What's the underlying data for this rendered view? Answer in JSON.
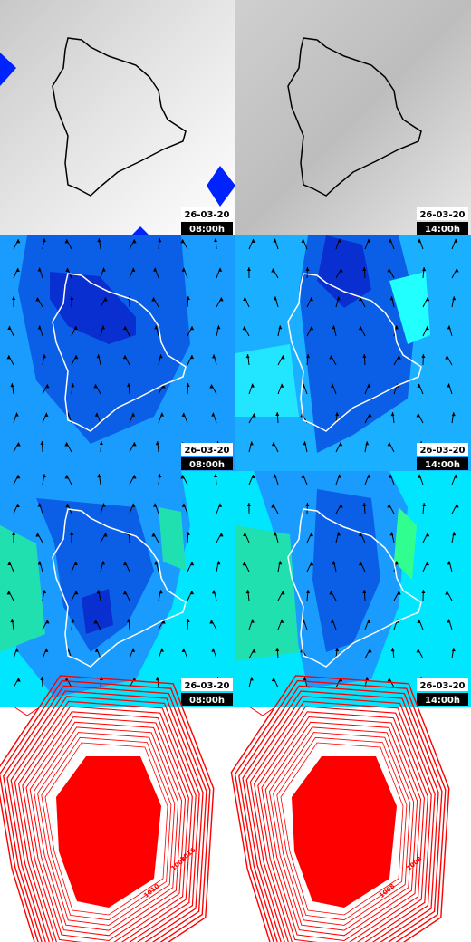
{
  "rows": [
    {
      "panels": [
        {
          "date": "26-03-20",
          "time": "08:00h"
        },
        {
          "date": "26-03-20",
          "time": "14:00h"
        }
      ]
    },
    {
      "panels": [
        {
          "date": "26-03-20",
          "time": "08:00h"
        },
        {
          "date": "26-03-20",
          "time": "14:00h"
        }
      ]
    },
    {
      "panels": [
        {
          "date": "26-03-20",
          "time": "08:00h"
        },
        {
          "date": "26-03-20",
          "time": "14:00h"
        }
      ]
    }
  ],
  "contour_panels": [
    {
      "labels": [
        "1008",
        "1010",
        "1012",
        "1016"
      ]
    },
    {
      "labels": [
        "1008",
        "1008",
        "1010"
      ]
    }
  ]
}
